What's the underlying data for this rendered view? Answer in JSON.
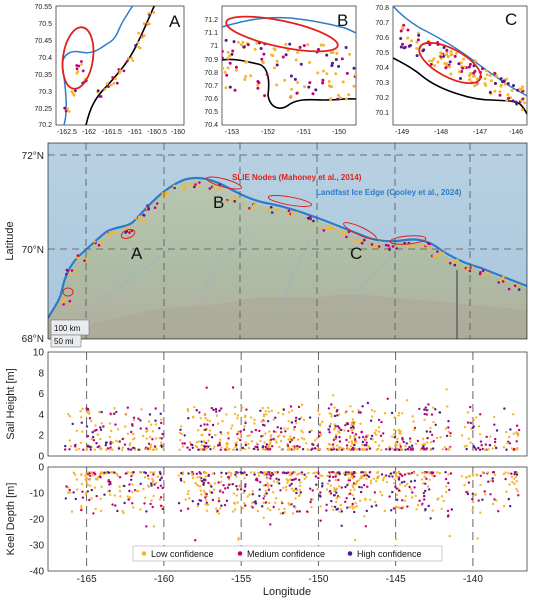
{
  "colors": {
    "low": "#F7B52C",
    "medium": "#C0007A",
    "high": "#4B1C8A",
    "slie": "#E0211C",
    "landfast": "#2C7CC8",
    "coast": "#000000",
    "grid": "#555555"
  },
  "chart_data": [
    {
      "panel": "A",
      "type": "scatter",
      "label": "A",
      "xlim": [
        -162.6,
        -159.8
      ],
      "ylim": [
        70.2,
        70.55
      ],
      "xticks": [
        "-162.5",
        "-162",
        "-161.5",
        "-161",
        "-160.5",
        "-160"
      ],
      "yticks": [
        "70.2",
        "70.25",
        "70.3",
        "70.35",
        "70.4",
        "70.45",
        "70.5",
        "70.55"
      ]
    },
    {
      "panel": "B",
      "type": "scatter",
      "label": "B",
      "xlim": [
        -153.6,
        -149.5
      ],
      "ylim": [
        70.4,
        71.3
      ],
      "xticks": [
        "-153",
        "-152",
        "-151",
        "-150"
      ],
      "yticks": [
        "70.4",
        "70.5",
        "70.6",
        "70.7",
        "70.8",
        "70.9",
        "71",
        "71.1",
        "71.2"
      ]
    },
    {
      "panel": "C",
      "type": "scatter",
      "label": "C",
      "xlim": [
        -149.5,
        -145.8
      ],
      "ylim": [
        70.0,
        70.8
      ],
      "xticks": [
        "-149",
        "-148",
        "-147",
        "-146"
      ],
      "yticks": [
        "70.1",
        "70.2",
        "70.3",
        "70.4",
        "70.5",
        "70.6",
        "70.7",
        "70.8"
      ]
    },
    {
      "panel": "map",
      "type": "scatter",
      "ylabel": "Latitude",
      "xlim": [
        -167.5,
        -136.5
      ],
      "ylim": [
        68,
        72
      ],
      "yticks": [
        "68°N",
        "70°N",
        "72°N"
      ],
      "series": [
        {
          "name": "SLIE Nodes (Mahoney et al., 2014)"
        },
        {
          "name": "Landfast Ice Edge (Cooley et al., 2024)"
        }
      ],
      "letters": [
        "A",
        "B",
        "C"
      ],
      "scalebar": [
        "100 km",
        "50 mi"
      ]
    },
    {
      "panel": "sail",
      "type": "scatter",
      "ylabel": "Sail Height [m]",
      "xlim": [
        -167.5,
        -136.5
      ],
      "ylim": [
        0,
        10
      ],
      "yticks": [
        "0",
        "2",
        "4",
        "6",
        "8",
        "10"
      ],
      "series": [
        {
          "name": "Low confidence"
        },
        {
          "name": "Medium confidence"
        },
        {
          "name": "High confidence"
        }
      ]
    },
    {
      "panel": "keel",
      "type": "scatter",
      "ylabel": "Keel Depth [m]",
      "xlabel": "Longitude",
      "xlim": [
        -167.5,
        -136.5
      ],
      "ylim": [
        -40,
        0
      ],
      "yticks": [
        "0",
        "-10",
        "-20",
        "-30",
        "-40"
      ],
      "xticks": [
        "-165",
        "-160",
        "-155",
        "-150",
        "-145",
        "-140"
      ],
      "legend": [
        "Low confidence",
        "Medium confidence",
        "High confidence"
      ],
      "legend_position": "bottom-center"
    }
  ]
}
